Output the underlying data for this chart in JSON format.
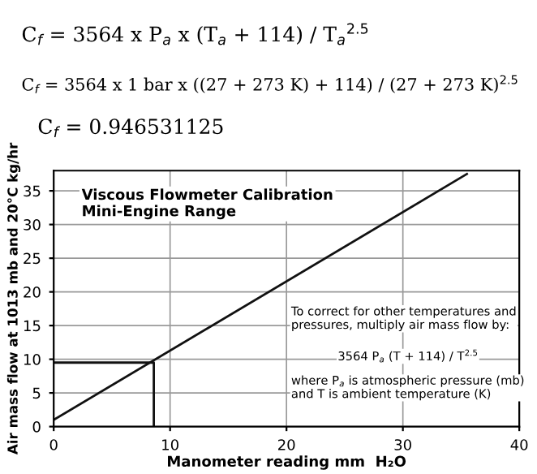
{
  "chart_data": {
    "type": "line",
    "title": "Viscous Flowmeter Calibration\nMini-Engine Range",
    "xlabel": "Manometer reading mm  H₂O",
    "ylabel": "Air mass flow at 1013 mb and 20°C kg/hr",
    "series": [
      {
        "color": "#111111",
        "x": [
          0,
          35.5
        ],
        "values": [
          1,
          37.5
        ]
      },
      {
        "color": "#111111",
        "x": [
          0,
          8.6,
          8.6
        ],
        "values": [
          9.5,
          9.5,
          0
        ]
      }
    ],
    "xlim": [
      0,
      40
    ],
    "xticks": [
      0,
      10,
      20,
      30,
      40
    ],
    "ylim": [
      0,
      38
    ],
    "yticks": [
      0,
      5,
      10,
      15,
      20,
      25,
      30,
      35
    ],
    "grid": true,
    "marker": "none",
    "line_style": "solid",
    "annotations": [
      "C$_{f}$ = 3564 x P$_{a}$ x (T$_{a}$ + 114) / T$_{a}$$^{2.5}$",
      "C$_{f}$ = 3564 x 1 bar x ((27 + 273 K) + 114) / (27 + 273 K)$^{2.5}$",
      "C$_{f}$ = 0.946531125",
      "To correct for other temperatures and\npressures, multiply air mass flow by:",
      "3564 P$_{a}$ (T + 114) / T$^{2.5}$",
      "where P$_{a}$ is atmospheric pressure (mb)\nand T is ambient temperature (K)"
    ]
  }
}
